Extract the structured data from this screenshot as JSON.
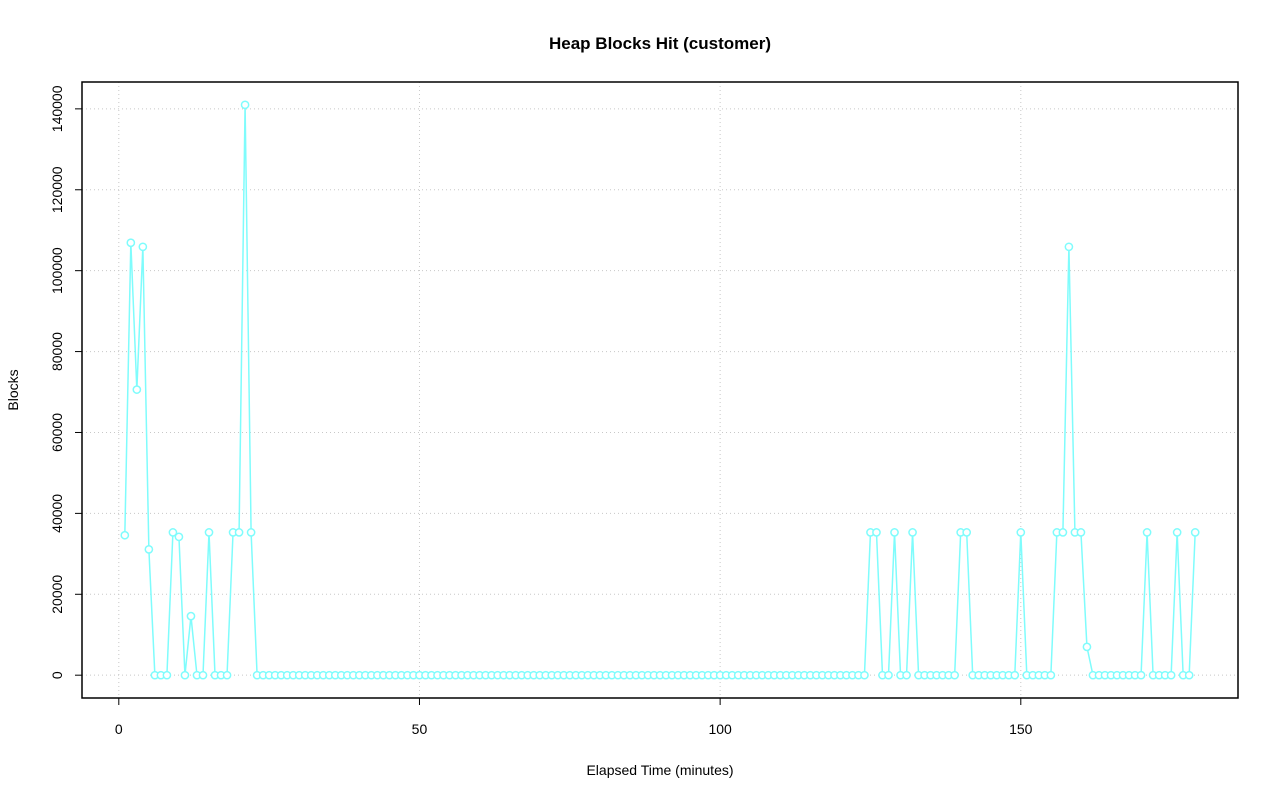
{
  "chart_data": {
    "type": "line",
    "title": "Heap Blocks Hit (customer)",
    "x_label": "Elapsed Time (minutes)",
    "y_label": "Blocks",
    "color": "#7ffcfc",
    "grid": true,
    "xlim": [
      -6.12,
      186.12
    ],
    "ylim": [
      -5640,
      146640
    ],
    "xticks": [
      0,
      50,
      100,
      150
    ],
    "yticks": [
      0,
      20000,
      40000,
      60000,
      80000,
      100000,
      120000,
      140000
    ],
    "x": [
      1,
      2,
      3,
      4,
      5,
      6,
      7,
      8,
      9,
      10,
      11,
      12,
      13,
      14,
      15,
      16,
      17,
      18,
      19,
      20,
      21,
      22,
      23,
      24,
      25,
      26,
      27,
      28,
      29,
      30,
      31,
      32,
      33,
      34,
      35,
      36,
      37,
      38,
      39,
      40,
      41,
      42,
      43,
      44,
      45,
      46,
      47,
      48,
      49,
      50,
      51,
      52,
      53,
      54,
      55,
      56,
      57,
      58,
      59,
      60,
      61,
      62,
      63,
      64,
      65,
      66,
      67,
      68,
      69,
      70,
      71,
      72,
      73,
      74,
      75,
      76,
      77,
      78,
      79,
      80,
      81,
      82,
      83,
      84,
      85,
      86,
      87,
      88,
      89,
      90,
      91,
      92,
      93,
      94,
      95,
      96,
      97,
      98,
      99,
      100,
      101,
      102,
      103,
      104,
      105,
      106,
      107,
      108,
      109,
      110,
      111,
      112,
      113,
      114,
      115,
      116,
      117,
      118,
      119,
      120,
      121,
      122,
      123,
      124,
      125,
      126,
      127,
      128,
      129,
      130,
      131,
      132,
      133,
      134,
      135,
      136,
      137,
      138,
      139,
      140,
      141,
      142,
      143,
      144,
      145,
      146,
      147,
      148,
      149,
      150,
      151,
      152,
      153,
      154,
      155,
      156,
      157,
      158,
      159,
      160,
      161,
      162,
      163,
      164,
      165,
      166,
      167,
      168,
      169,
      170,
      171,
      172,
      173,
      174,
      175,
      176,
      177,
      178,
      179
    ],
    "values": [
      34600,
      106900,
      70600,
      105900,
      31100,
      0,
      0,
      0,
      35300,
      34200,
      0,
      14600,
      0,
      0,
      35300,
      0,
      0,
      0,
      35300,
      35300,
      141000,
      35300,
      0,
      0,
      0,
      0,
      0,
      0,
      0,
      0,
      0,
      0,
      0,
      0,
      0,
      0,
      0,
      0,
      0,
      0,
      0,
      0,
      0,
      0,
      0,
      0,
      0,
      0,
      0,
      0,
      0,
      0,
      0,
      0,
      0,
      0,
      0,
      0,
      0,
      0,
      0,
      0,
      0,
      0,
      0,
      0,
      0,
      0,
      0,
      0,
      0,
      0,
      0,
      0,
      0,
      0,
      0,
      0,
      0,
      0,
      0,
      0,
      0,
      0,
      0,
      0,
      0,
      0,
      0,
      0,
      0,
      0,
      0,
      0,
      0,
      0,
      0,
      0,
      0,
      0,
      0,
      0,
      0,
      0,
      0,
      0,
      0,
      0,
      0,
      0,
      0,
      0,
      0,
      0,
      0,
      0,
      0,
      0,
      0,
      0,
      0,
      0,
      0,
      0,
      35300,
      35300,
      0,
      0,
      35300,
      0,
      0,
      35300,
      0,
      0,
      0,
      0,
      0,
      0,
      0,
      35300,
      35300,
      0,
      0,
      0,
      0,
      0,
      0,
      0,
      0,
      35300,
      0,
      0,
      0,
      0,
      0,
      35300,
      35300,
      105900,
      35300,
      35300,
      7000,
      0,
      0,
      0,
      0,
      0,
      0,
      0,
      0,
      0,
      35300,
      0,
      0,
      0,
      0,
      35300,
      0,
      0,
      35300
    ]
  }
}
